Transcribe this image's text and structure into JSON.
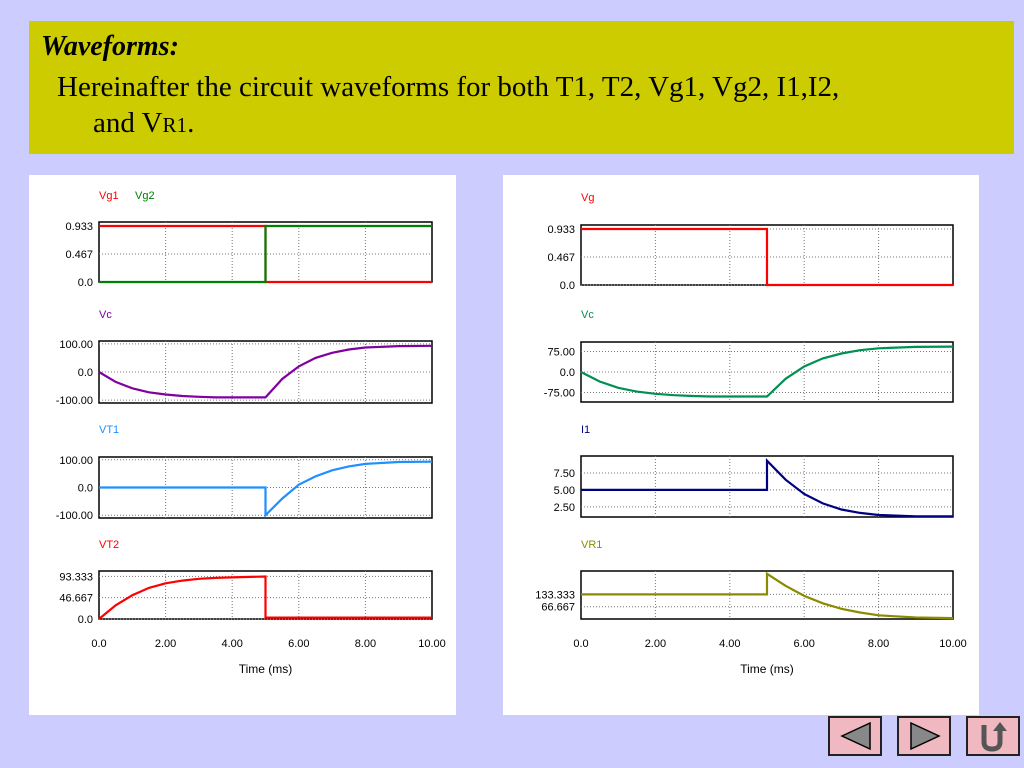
{
  "header": {
    "title": "Waveforms:",
    "line1": "Hereinafter the circuit waveforms for both T1, T2, Vg1, Vg2, I1,I2,",
    "line2_prefix": "and V",
    "line2_sub": "R1",
    "line2_suffix": "."
  },
  "nav": {
    "back_icon": "triangle-left-icon",
    "forward_icon": "triangle-right-icon",
    "return_icon": "return-arrow-icon"
  },
  "chart_data": [
    {
      "type": "line",
      "panel": "left",
      "xlabel": "Time (ms)",
      "xlim": [
        0,
        10
      ],
      "xticks": [
        "0.0",
        "2.00",
        "4.00",
        "6.00",
        "8.00",
        "10.00"
      ],
      "subplots": [
        {
          "series": [
            {
              "name": "Vg1",
              "color": "#ff0000",
              "x": [
                0,
                5,
                5,
                10
              ],
              "y": [
                0.933,
                0.933,
                0.0,
                0.0
              ]
            },
            {
              "name": "Vg2",
              "color": "#008000",
              "x": [
                0,
                5,
                5,
                10
              ],
              "y": [
                0.0,
                0.0,
                0.933,
                0.933
              ]
            }
          ],
          "ylim": [
            0,
            1.0
          ],
          "yticks": [
            {
              "v": 0.933,
              "t": "0.933"
            },
            {
              "v": 0.467,
              "t": "0.467"
            },
            {
              "v": 0,
              "t": "0.0"
            }
          ]
        },
        {
          "series": [
            {
              "name": "Vc",
              "color": "#8000a0",
              "x": [
                0,
                0.5,
                1,
                1.5,
                2,
                2.5,
                3,
                3.5,
                4,
                5,
                5.5,
                6,
                6.5,
                7,
                7.5,
                8,
                9,
                10
              ],
              "y": [
                0,
                -35,
                -58,
                -72,
                -80,
                -85,
                -88,
                -90,
                -90,
                -90,
                -25,
                20,
                50,
                68,
                80,
                87,
                92,
                93
              ]
            }
          ],
          "ylim": [
            -110,
            110
          ],
          "yticks": [
            {
              "v": 100,
              "t": "100.00"
            },
            {
              "v": 0,
              "t": "0.0"
            },
            {
              "v": -100,
              "t": "-100.00"
            }
          ]
        },
        {
          "series": [
            {
              "name": "VT1",
              "color": "#1e90ff",
              "x": [
                0,
                5,
                5,
                5.5,
                6,
                6.5,
                7,
                7.5,
                8,
                9,
                10
              ],
              "y": [
                0,
                0,
                -100,
                -40,
                10,
                40,
                62,
                76,
                85,
                92,
                93
              ]
            }
          ],
          "ylim": [
            -110,
            110
          ],
          "yticks": [
            {
              "v": 100,
              "t": "100.00"
            },
            {
              "v": 0,
              "t": "0.0"
            },
            {
              "v": -100,
              "t": "-100.00"
            }
          ]
        },
        {
          "series": [
            {
              "name": "VT2",
              "color": "#ff0000",
              "x": [
                0,
                0.5,
                1,
                1.5,
                2,
                2.5,
                3,
                3.5,
                4,
                5,
                5,
                10
              ],
              "y": [
                0,
                30,
                52,
                68,
                78,
                84,
                88,
                90,
                91,
                93,
                3,
                3
              ]
            }
          ],
          "ylim": [
            0,
            105
          ],
          "yticks": [
            {
              "v": 93.333,
              "t": "93.333"
            },
            {
              "v": 46.667,
              "t": "46.667"
            },
            {
              "v": 0,
              "t": "0.0"
            }
          ]
        }
      ]
    },
    {
      "type": "line",
      "panel": "right",
      "xlabel": "Time (ms)",
      "xlim": [
        0,
        10
      ],
      "xticks": [
        "0.0",
        "2.00",
        "4.00",
        "6.00",
        "8.00",
        "10.00"
      ],
      "subplots": [
        {
          "series": [
            {
              "name": "Vg",
              "color": "#ff0000",
              "x": [
                0,
                5,
                5,
                10
              ],
              "y": [
                0.933,
                0.933,
                0.0,
                0.0
              ]
            }
          ],
          "ylim": [
            0,
            1.0
          ],
          "yticks": [
            {
              "v": 0.933,
              "t": "0.933"
            },
            {
              "v": 0.467,
              "t": "0.467"
            },
            {
              "v": 0,
              "t": "0.0"
            }
          ]
        },
        {
          "series": [
            {
              "name": "Vc",
              "color": "#009050",
              "x": [
                0,
                0.5,
                1,
                1.5,
                2,
                2.5,
                3,
                3.5,
                4,
                5,
                5.5,
                6,
                6.5,
                7,
                7.5,
                8,
                9,
                10
              ],
              "y": [
                0,
                -35,
                -58,
                -72,
                -80,
                -85,
                -88,
                -90,
                -90,
                -90,
                -25,
                20,
                50,
                68,
                80,
                87,
                92,
                93
              ]
            }
          ],
          "ylim": [
            -110,
            110
          ],
          "yticks": [
            {
              "v": 75,
              "t": "75.00"
            },
            {
              "v": 0,
              "t": "0.0"
            },
            {
              "v": -75,
              "t": "-75.00"
            }
          ]
        },
        {
          "series": [
            {
              "name": "I1",
              "color": "#000080",
              "x": [
                0,
                5,
                5,
                5.5,
                6,
                6.5,
                7,
                7.5,
                8,
                9,
                10
              ],
              "y": [
                5.0,
                5.0,
                9.3,
                6.5,
                4.4,
                3.0,
                2.1,
                1.6,
                1.3,
                1.1,
                1.1
              ]
            }
          ],
          "ylim": [
            1,
            10
          ],
          "yticks": [
            {
              "v": 7.5,
              "t": "7.50"
            },
            {
              "v": 5.0,
              "t": "5.00"
            },
            {
              "v": 2.5,
              "t": "2.50"
            }
          ]
        },
        {
          "series": [
            {
              "name": "VR1",
              "color": "#8b8b00",
              "x": [
                0,
                5,
                5,
                5.5,
                6,
                6.5,
                7,
                7.5,
                8,
                9,
                10
              ],
              "y": [
                133.333,
                133.333,
                245,
                180,
                125,
                85,
                55,
                35,
                20,
                8,
                5
              ]
            }
          ],
          "ylim": [
            0,
            260
          ],
          "yticks": [
            {
              "v": 133.333,
              "t": "133.333"
            },
            {
              "v": 66.667,
              "t": "66.667"
            }
          ]
        }
      ]
    }
  ]
}
